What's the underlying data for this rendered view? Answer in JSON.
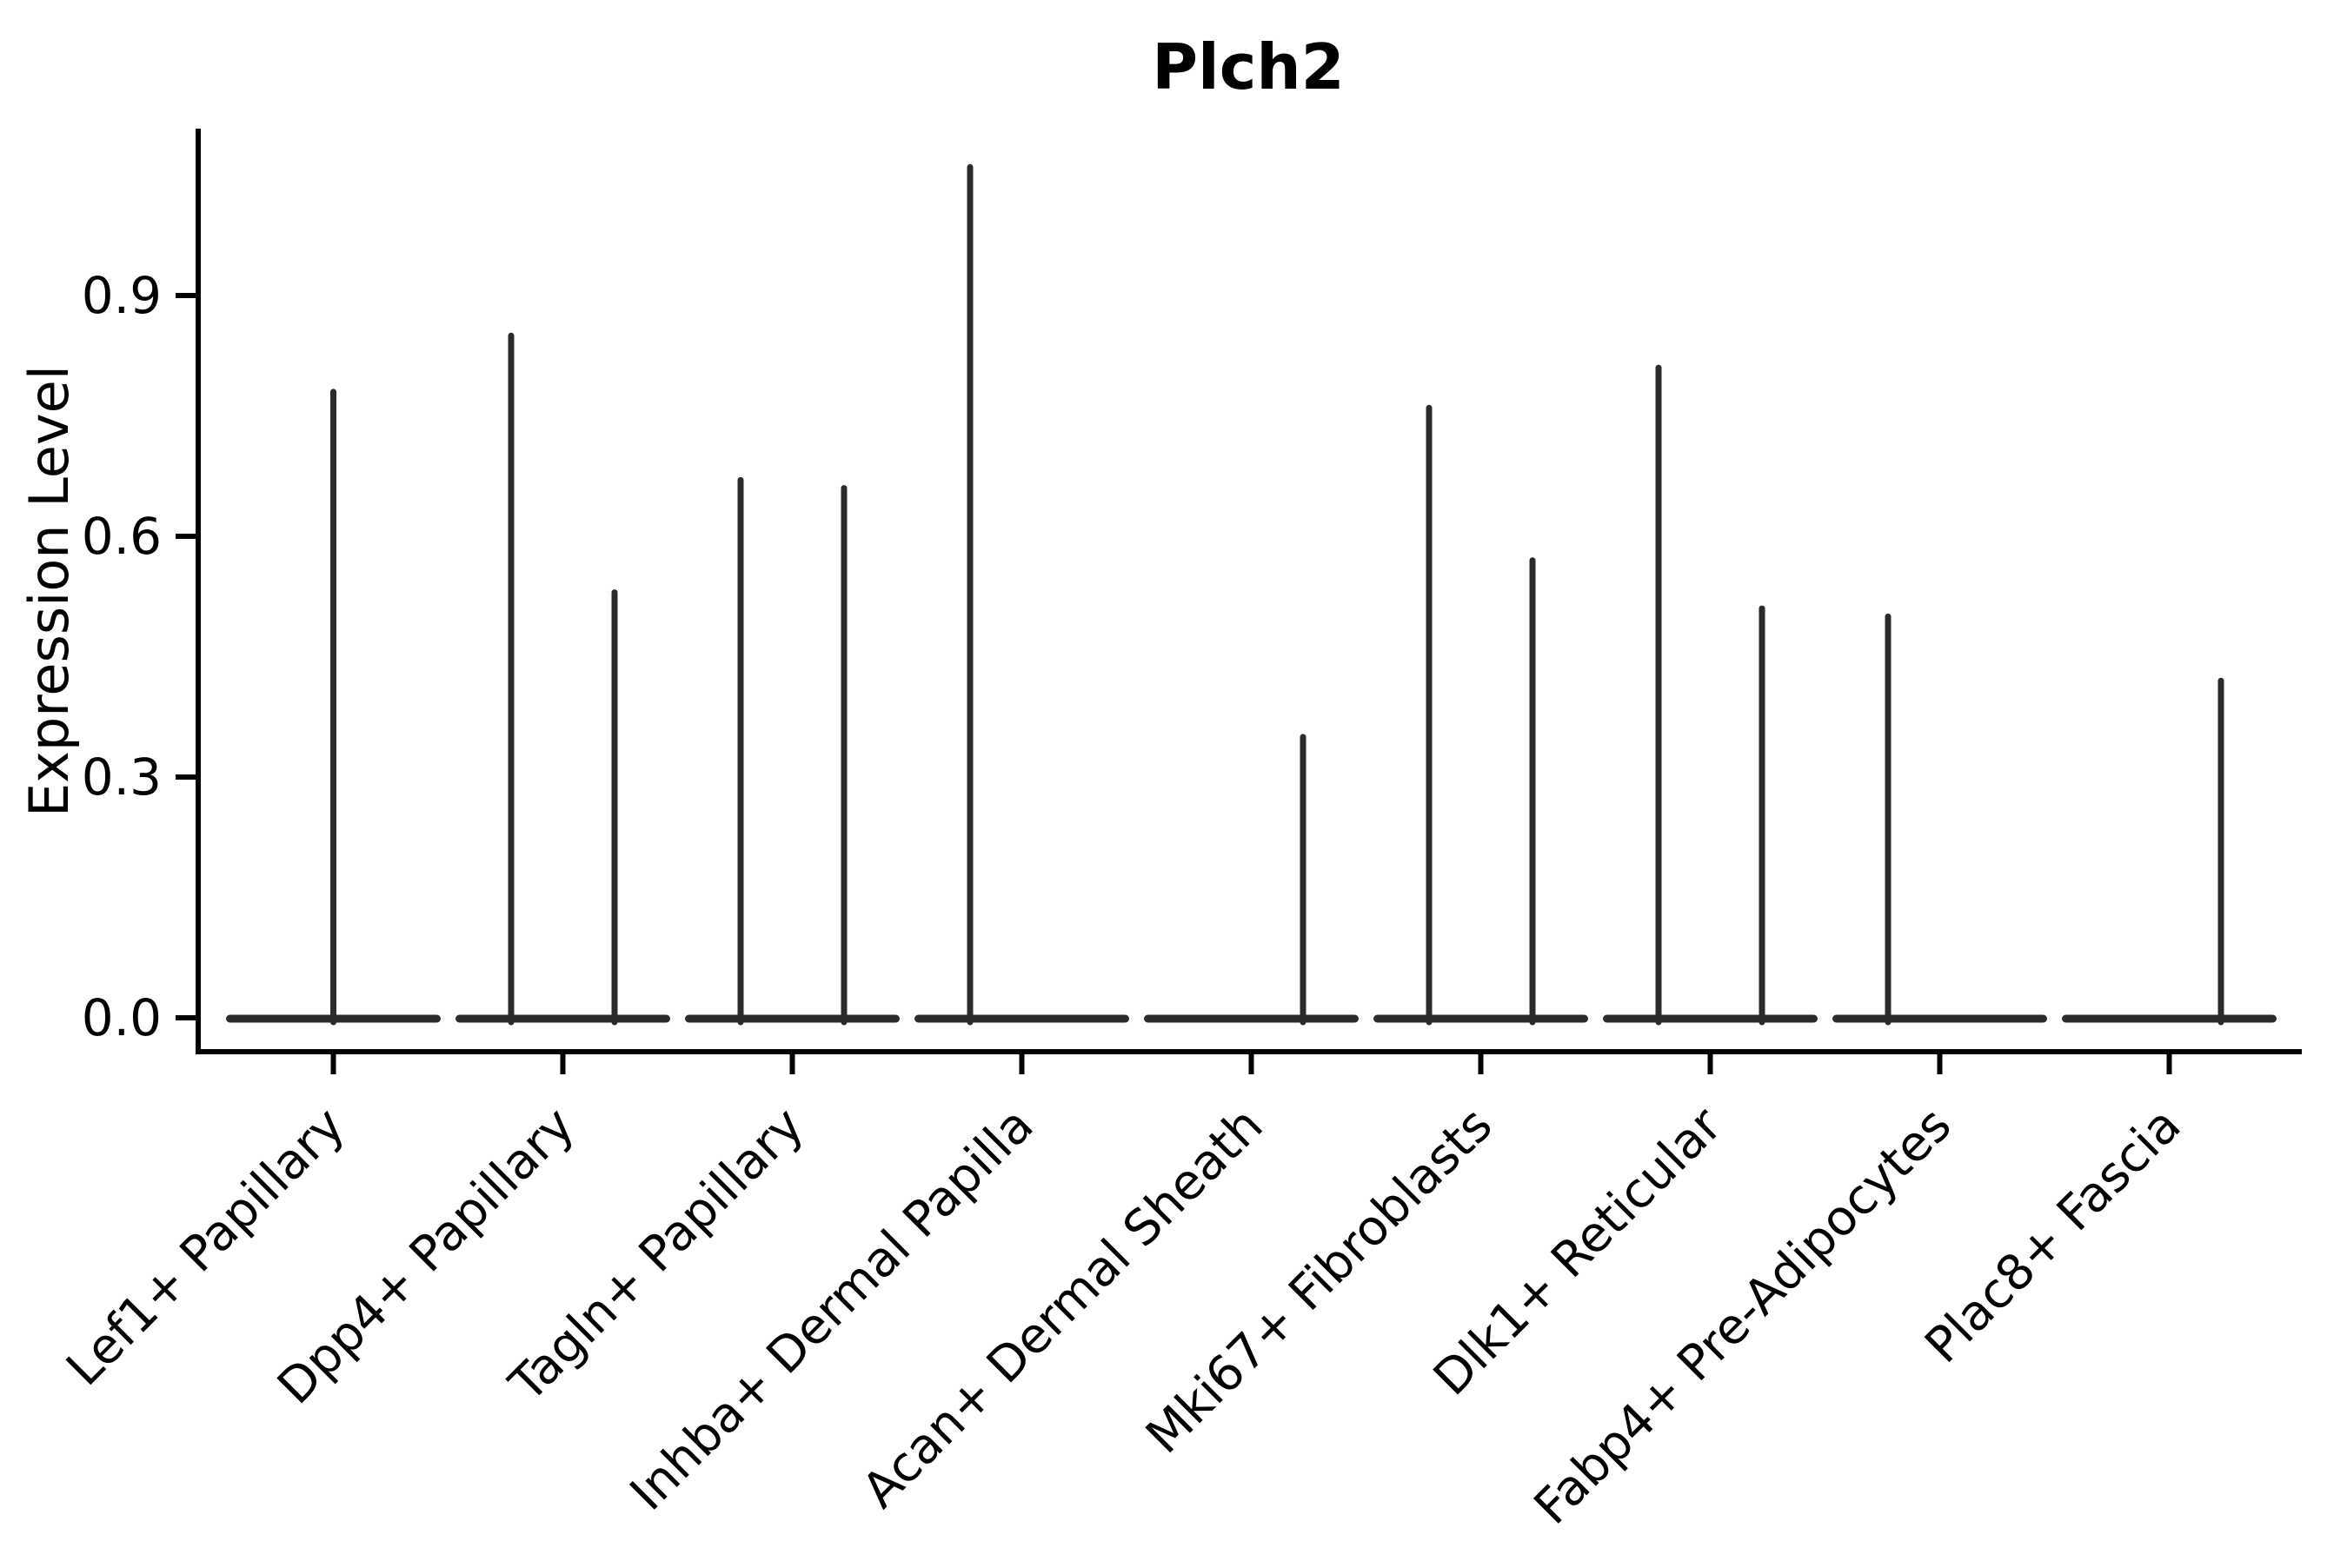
{
  "chart_data": {
    "type": "violin",
    "title": "Plch2",
    "xlabel": "",
    "ylabel": "Expression Level",
    "ylim": [
      -0.042,
      1.108
    ],
    "grid": false,
    "legend": "none",
    "violin_color": "#2b2b2b",
    "axis_color": "#000000",
    "yticks": [
      {
        "label": "0.0",
        "value": 0.0
      },
      {
        "label": "0.3",
        "value": 0.3
      },
      {
        "label": "0.6",
        "value": 0.6
      },
      {
        "label": "0.9",
        "value": 0.9
      }
    ],
    "categories": [
      "Lef1+ Papillary",
      "Dpp4+ Papillary",
      "Tagln+ Papillary",
      "Inhba+ Dermal Papilla",
      "Acan+ Dermal Sheath",
      "Mki67+ Fibroblasts",
      "Dlk1+ Reticular",
      "Fabp4+ Pre-Adipocytes",
      "Plac8+ Fascia"
    ],
    "note": "Each category shows a flat violin base at 0 expression; thin spikes mark the maximum expression tail of each violin (two dodged violins per category where two spikes appear).",
    "violins": [
      {
        "category_index": 0,
        "category": "Lef1+ Papillary",
        "slot": "center",
        "peak": 0.78
      },
      {
        "category_index": 1,
        "category": "Dpp4+ Papillary",
        "slot": "left",
        "peak": 0.85
      },
      {
        "category_index": 1,
        "category": "Dpp4+ Papillary",
        "slot": "right",
        "peak": 0.53
      },
      {
        "category_index": 2,
        "category": "Tagln+ Papillary",
        "slot": "left",
        "peak": 0.67
      },
      {
        "category_index": 2,
        "category": "Tagln+ Papillary",
        "slot": "right",
        "peak": 0.66
      },
      {
        "category_index": 3,
        "category": "Inhba+ Dermal Papilla",
        "slot": "left",
        "peak": 1.06
      },
      {
        "category_index": 3,
        "category": "Inhba+ Dermal Papilla",
        "slot": "right",
        "peak": 0.0
      },
      {
        "category_index": 4,
        "category": "Acan+ Dermal Sheath",
        "slot": "left",
        "peak": 0.0
      },
      {
        "category_index": 4,
        "category": "Acan+ Dermal Sheath",
        "slot": "right",
        "peak": 0.35
      },
      {
        "category_index": 5,
        "category": "Mki67+ Fibroblasts",
        "slot": "left",
        "peak": 0.76
      },
      {
        "category_index": 5,
        "category": "Mki67+ Fibroblasts",
        "slot": "right",
        "peak": 0.57
      },
      {
        "category_index": 6,
        "category": "Dlk1+ Reticular",
        "slot": "left",
        "peak": 0.81
      },
      {
        "category_index": 6,
        "category": "Dlk1+ Reticular",
        "slot": "right",
        "peak": 0.51
      },
      {
        "category_index": 7,
        "category": "Fabp4+ Pre-Adipocytes",
        "slot": "left",
        "peak": 0.5
      },
      {
        "category_index": 7,
        "category": "Fabp4+ Pre-Adipocytes",
        "slot": "right",
        "peak": 0.0
      },
      {
        "category_index": 8,
        "category": "Plac8+ Fascia",
        "slot": "left",
        "peak": 0.0
      },
      {
        "category_index": 8,
        "category": "Plac8+ Fascia",
        "slot": "right",
        "peak": 0.42
      }
    ]
  }
}
